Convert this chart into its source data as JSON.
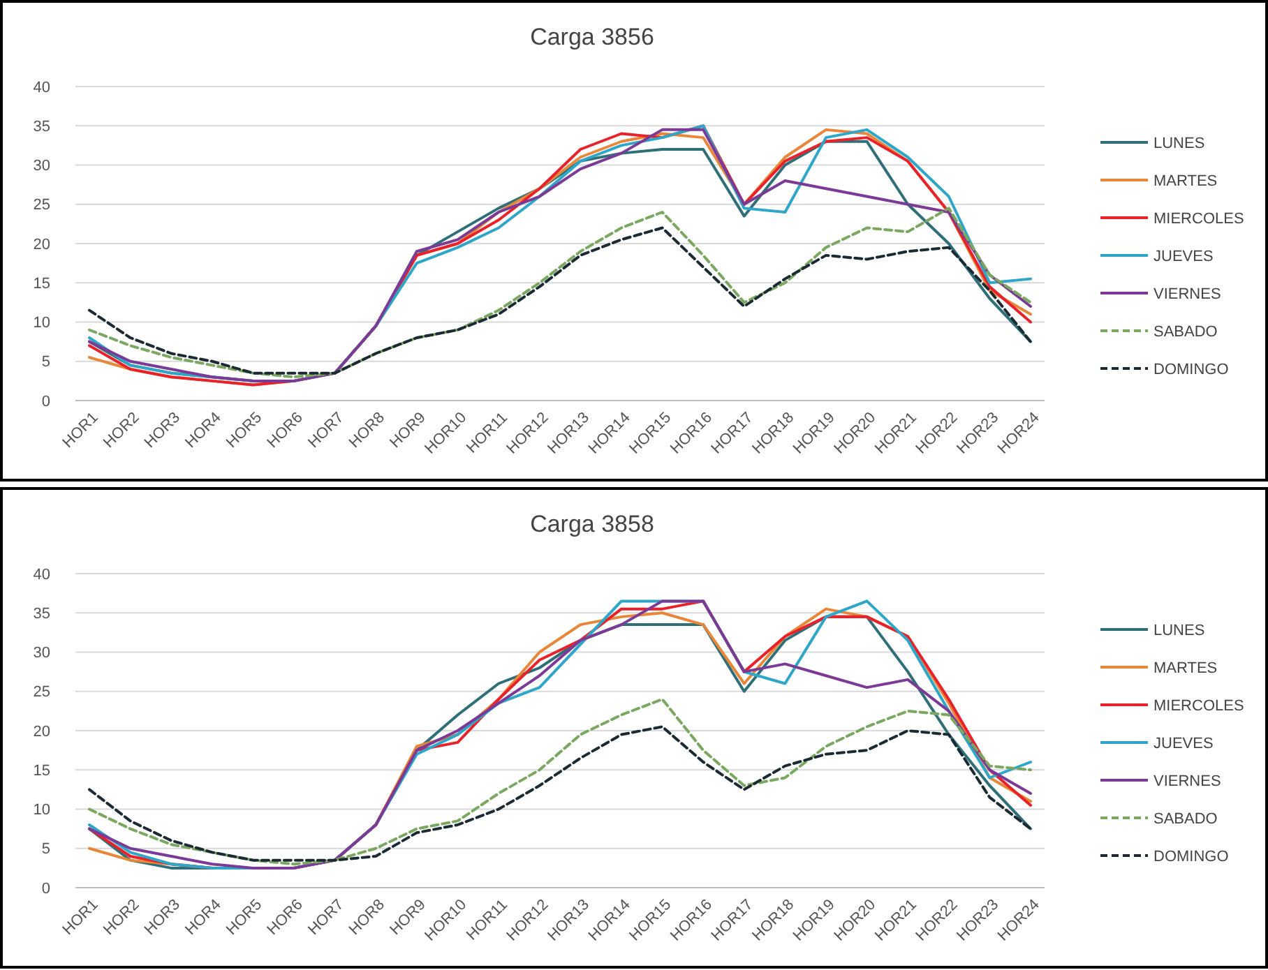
{
  "chart_data": [
    {
      "type": "line",
      "title": "Carga 3856",
      "categories": [
        "HOR1",
        "HOR2",
        "HOR3",
        "HOR4",
        "HOR5",
        "HOR6",
        "HOR7",
        "HOR8",
        "HOR9",
        "HOR10",
        "HOR11",
        "HOR12",
        "HOR13",
        "HOR14",
        "HOR15",
        "HOR16",
        "HOR17",
        "HOR18",
        "HOR19",
        "HOR20",
        "HOR21",
        "HOR22",
        "HOR23",
        "HOR24"
      ],
      "ylim": [
        0,
        40
      ],
      "yticks": [
        0,
        5,
        10,
        15,
        20,
        25,
        30,
        35,
        40
      ],
      "grid": "y",
      "legend": "right",
      "marker": "none",
      "series": [
        {
          "name": "LUNES",
          "color": "#2e6f78",
          "line_style": "solid",
          "values": [
            7.5,
            4.5,
            3.5,
            3,
            2.5,
            2.5,
            3.5,
            9.5,
            18.5,
            21.5,
            24.5,
            27,
            30.5,
            31.5,
            32,
            32,
            23.5,
            30,
            33,
            33,
            25,
            20,
            13,
            7.5
          ]
        },
        {
          "name": "MARTES",
          "color": "#e8873a",
          "line_style": "solid",
          "values": [
            5.5,
            4,
            3,
            2.5,
            2,
            2.5,
            3.5,
            9.5,
            18.5,
            20,
            24,
            27,
            31,
            33,
            34,
            33.5,
            25,
            31,
            34.5,
            34,
            30.5,
            24,
            14,
            11
          ]
        },
        {
          "name": "MIERCOLES",
          "color": "#e8222a",
          "line_style": "solid",
          "values": [
            7,
            4,
            3,
            2.5,
            2,
            2.5,
            3.5,
            9.5,
            18.5,
            20,
            23,
            27,
            32,
            34,
            33.5,
            35,
            25,
            30.5,
            33,
            33.5,
            30.5,
            24,
            14.5,
            10
          ]
        },
        {
          "name": "JUEVES",
          "color": "#2ea6c8",
          "line_style": "solid",
          "values": [
            8,
            4.5,
            3.5,
            3,
            2.5,
            2.5,
            3.5,
            9.5,
            17.5,
            19.5,
            22,
            26,
            30.5,
            32.5,
            33.5,
            35,
            24.5,
            24,
            33.5,
            34.5,
            31,
            26,
            15,
            15.5
          ]
        },
        {
          "name": "VIERNES",
          "color": "#7b3a96",
          "line_style": "solid",
          "values": [
            7.5,
            5,
            4,
            3,
            2.5,
            2.5,
            3.5,
            9.5,
            19,
            20.5,
            24,
            26,
            29.5,
            31.5,
            34.5,
            34.5,
            25,
            28,
            27,
            26,
            25,
            24,
            16,
            12
          ]
        },
        {
          "name": "SABADO",
          "color": "#7aa860",
          "line_style": "dashed",
          "values": [
            9,
            7,
            5.5,
            4.5,
            3.5,
            3,
            3.5,
            6,
            8,
            9,
            11.5,
            15,
            19,
            22,
            24,
            18.5,
            12.5,
            15,
            19.5,
            22,
            21.5,
            24.5,
            16,
            12.5
          ]
        },
        {
          "name": "DOMINGO",
          "color": "#1c2a33",
          "line_style": "dashed",
          "values": [
            11.5,
            8,
            6,
            5,
            3.5,
            3.5,
            3.5,
            6,
            8,
            9,
            11,
            14.5,
            18.5,
            20.5,
            22,
            17,
            12,
            15.5,
            18.5,
            18,
            19,
            19.5,
            14,
            7.5
          ]
        }
      ]
    },
    {
      "type": "line",
      "title": "Carga 3858",
      "categories": [
        "HOR1",
        "HOR2",
        "HOR3",
        "HOR4",
        "HOR5",
        "HOR6",
        "HOR7",
        "HOR8",
        "HOR9",
        "HOR10",
        "HOR11",
        "HOR12",
        "HOR13",
        "HOR14",
        "HOR15",
        "HOR16",
        "HOR17",
        "HOR18",
        "HOR19",
        "HOR20",
        "HOR21",
        "HOR22",
        "HOR23",
        "HOR24"
      ],
      "ylim": [
        0,
        40
      ],
      "yticks": [
        0,
        5,
        10,
        15,
        20,
        25,
        30,
        35,
        40
      ],
      "grid": "y",
      "legend": "right",
      "marker": "none",
      "series": [
        {
          "name": "LUNES",
          "color": "#2e6f78",
          "line_style": "solid",
          "values": [
            7.5,
            3.5,
            2.5,
            2.5,
            2.5,
            2.5,
            3.5,
            8,
            17.5,
            22,
            26,
            28,
            31.5,
            33.5,
            33.5,
            33.5,
            25,
            31.5,
            34.5,
            34.5,
            27.5,
            19.5,
            13,
            7.5
          ]
        },
        {
          "name": "MARTES",
          "color": "#e8873a",
          "line_style": "solid",
          "values": [
            5,
            3.5,
            3,
            2.5,
            2.5,
            2.5,
            3.5,
            8,
            18,
            19.5,
            24,
            30,
            33.5,
            34.5,
            35,
            33.5,
            26,
            32,
            35.5,
            34.5,
            32,
            23.5,
            14,
            11
          ]
        },
        {
          "name": "MIERCOLES",
          "color": "#e8222a",
          "line_style": "solid",
          "values": [
            7.5,
            4,
            3,
            2.5,
            2.5,
            2.5,
            3.5,
            8,
            17.5,
            18.5,
            24,
            29,
            31.5,
            35.5,
            35.5,
            36.5,
            27.5,
            32,
            34.5,
            34.5,
            32,
            24,
            15,
            10.5
          ]
        },
        {
          "name": "JUEVES",
          "color": "#2ea6c8",
          "line_style": "solid",
          "values": [
            8,
            4.5,
            3,
            2.5,
            2.5,
            2.5,
            3.5,
            8,
            17,
            19.5,
            23.5,
            25.5,
            31,
            36.5,
            36.5,
            36.5,
            27.5,
            26,
            34.5,
            36.5,
            31.5,
            22.5,
            14,
            16
          ]
        },
        {
          "name": "VIERNES",
          "color": "#7b3a96",
          "line_style": "solid",
          "values": [
            7.5,
            5,
            4,
            3,
            2.5,
            2.5,
            3.5,
            8,
            17.5,
            20,
            23.5,
            27,
            31.5,
            33.5,
            36.5,
            36.5,
            27.5,
            28.5,
            27,
            25.5,
            26.5,
            22.5,
            15,
            12
          ]
        },
        {
          "name": "SABADO",
          "color": "#7aa860",
          "line_style": "dashed",
          "values": [
            10,
            7.5,
            5.5,
            4.5,
            3.5,
            3,
            3.5,
            5,
            7.5,
            8.5,
            12,
            15,
            19.5,
            22,
            24,
            17.5,
            13,
            14,
            18,
            20.5,
            22.5,
            22,
            15.5,
            15
          ]
        },
        {
          "name": "DOMINGO",
          "color": "#1c2a33",
          "line_style": "dashed",
          "values": [
            12.5,
            8.5,
            6,
            4.5,
            3.5,
            3.5,
            3.5,
            4,
            7,
            8,
            10,
            13,
            16.5,
            19.5,
            20.5,
            16,
            12.5,
            15.5,
            17,
            17.5,
            20,
            19.5,
            11.5,
            7.5
          ]
        }
      ]
    }
  ]
}
